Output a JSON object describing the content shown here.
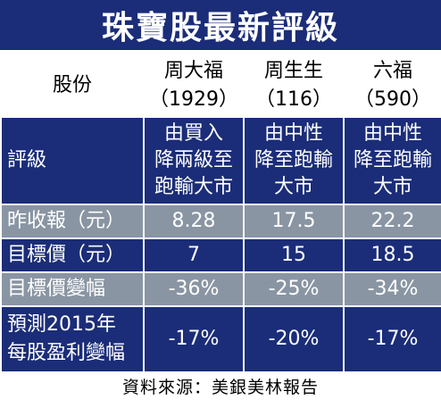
{
  "title": "珠寶股最新評級",
  "header": {
    "stock_label": "股份",
    "companies": [
      {
        "name": "周大福",
        "code": "（1929）"
      },
      {
        "name": "周生生",
        "code": "（116）"
      },
      {
        "name": "六福",
        "code": "（590）"
      }
    ]
  },
  "rows": {
    "rating": {
      "label": "評級",
      "values": [
        [
          "由買入",
          "降兩級至",
          "跑輸大市"
        ],
        [
          "由中性",
          "降至跑輸",
          "大市"
        ],
        [
          "由中性",
          "降至跑輸",
          "大市"
        ]
      ]
    },
    "close": {
      "label": "昨收報（元）",
      "values": [
        "8.28",
        "17.5",
        "22.2"
      ]
    },
    "target": {
      "label": "目標價（元）",
      "values": [
        "7",
        "15",
        "18.5"
      ]
    },
    "target_change": {
      "label": "目標價變幅",
      "values": [
        "-36%",
        "-25%",
        "-34%"
      ]
    },
    "eps_forecast": {
      "label_line1": "預測2015年",
      "label_line2": "每股盈利變幅",
      "values": [
        "-17%",
        "-20%",
        "-17%"
      ]
    }
  },
  "source": "資料來源：美銀美林報告",
  "colors": {
    "navy": "#1b2d78",
    "gray": "#8a95a3"
  }
}
